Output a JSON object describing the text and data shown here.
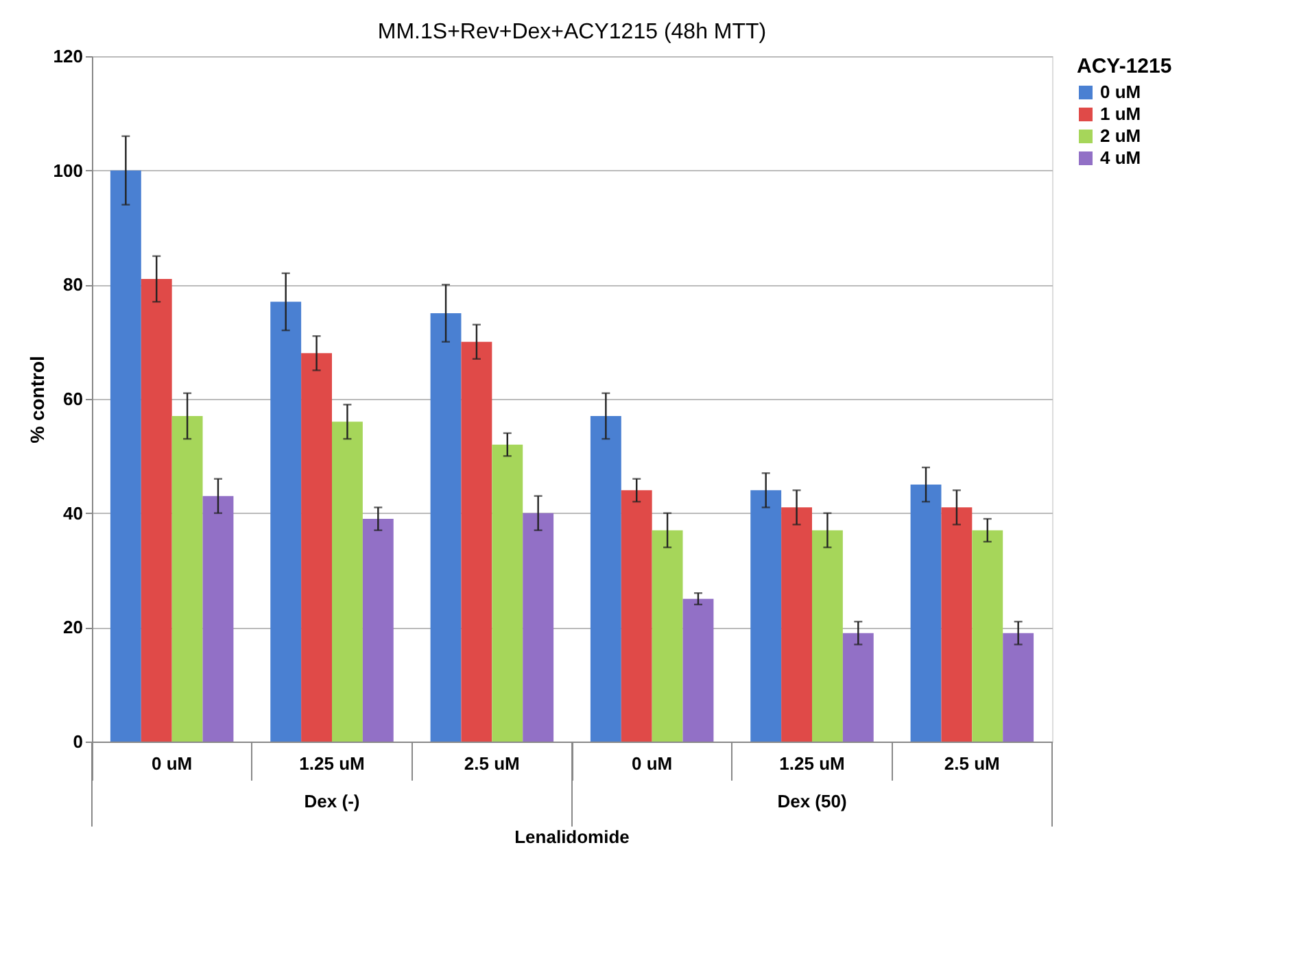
{
  "chart_data": {
    "type": "bar",
    "title": "MM.1S+Rev+Dex+ACY1215 (48h MTT)",
    "xlabel": "Lenalidomide",
    "ylabel": "% control",
    "legend_title": "ACY-1215",
    "categories": [
      "0 uM",
      "1.25 uM",
      "2.5 uM",
      "0 uM",
      "1.25 uM",
      "2.5 uM"
    ],
    "annotations": [
      "Dex (-)",
      "Dex (50)"
    ],
    "series": [
      {
        "name": "0 uM",
        "color": "#4a80d2",
        "values": [
          100,
          77,
          75,
          57,
          44,
          45
        ],
        "errors": [
          6,
          5,
          5,
          4,
          3,
          3
        ]
      },
      {
        "name": "1 uM",
        "color": "#e04a48",
        "values": [
          81,
          68,
          70,
          44,
          41,
          41
        ],
        "errors": [
          4,
          3,
          3,
          2,
          3,
          3
        ]
      },
      {
        "name": "2 uM",
        "color": "#a6d65a",
        "values": [
          57,
          56,
          52,
          37,
          37,
          37
        ],
        "errors": [
          4,
          3,
          2,
          3,
          3,
          2
        ]
      },
      {
        "name": "4 uM",
        "color": "#9270c6",
        "values": [
          43,
          39,
          40,
          25,
          19,
          19
        ],
        "errors": [
          3,
          2,
          3,
          1,
          2,
          2
        ]
      }
    ],
    "ylim": [
      0,
      120
    ],
    "yticks": [
      0,
      20,
      40,
      60,
      80,
      100,
      120
    ],
    "grid": "y",
    "legend": "right"
  }
}
